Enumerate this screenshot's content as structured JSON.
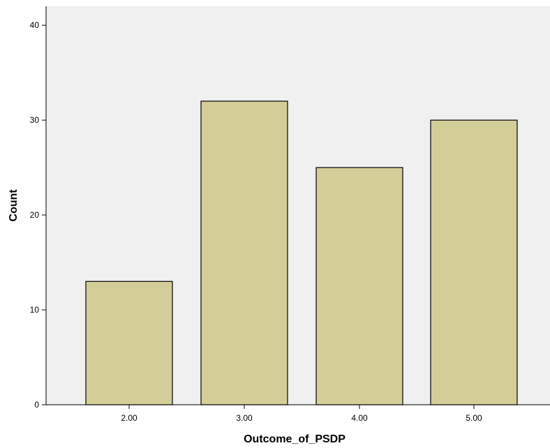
{
  "chart_data": {
    "type": "bar",
    "title": "",
    "xlabel": "Outcome_of_PSDP",
    "ylabel": "Count",
    "categories": [
      "2.00",
      "3.00",
      "4.00",
      "5.00"
    ],
    "values": [
      13,
      32,
      25,
      30
    ],
    "ylim": [
      0,
      42
    ],
    "yticks": [
      "0",
      "10",
      "20",
      "30",
      "40"
    ],
    "grid": false,
    "colors": {
      "plot_background": "#f0f0f0",
      "bar_fill": "#d3ce97",
      "bar_stroke": "#000000"
    }
  }
}
